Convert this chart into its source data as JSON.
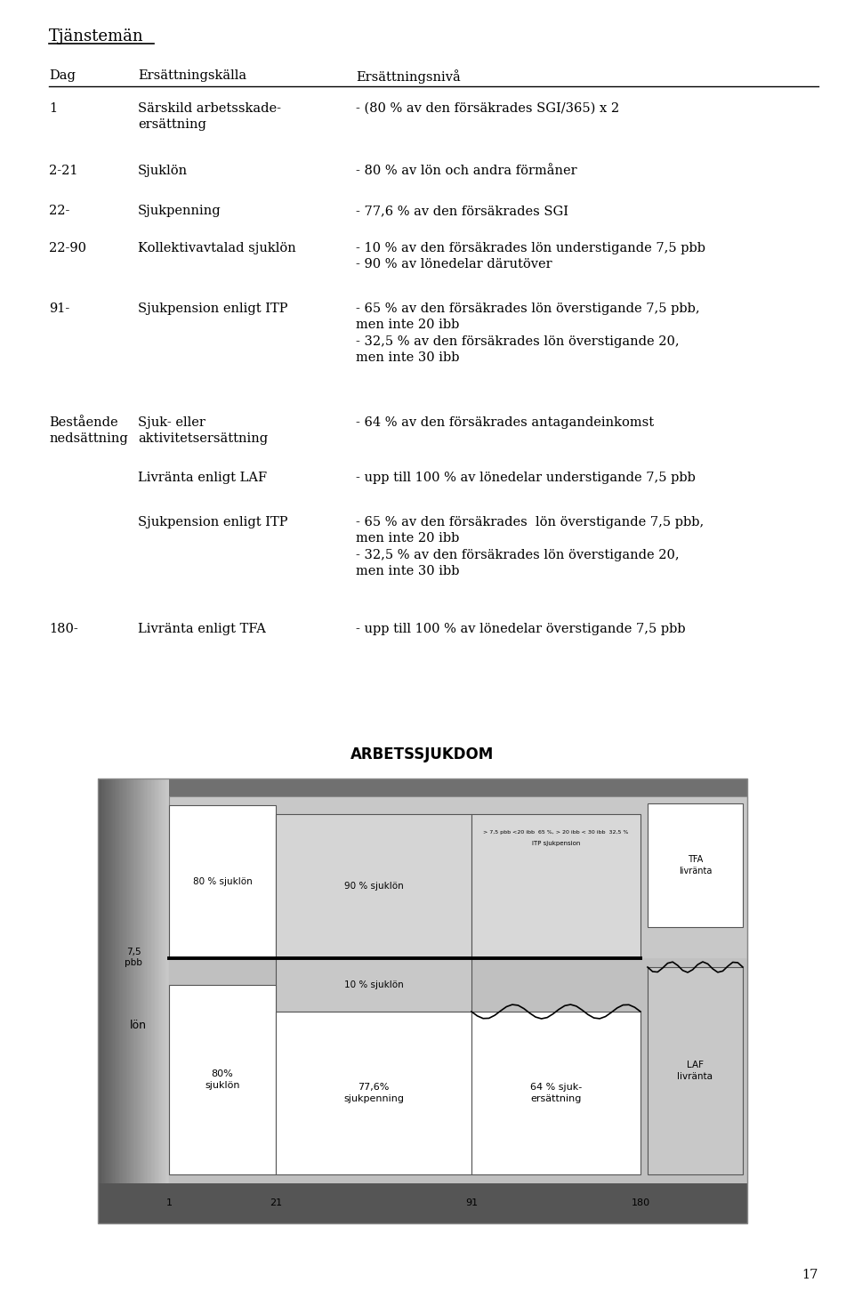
{
  "title": "Tjänstemän",
  "header_dag": "Dag",
  "header_kalla": "Ersättningskälla",
  "header_niva": "Ersättningsnivå",
  "rows": [
    {
      "dag": "1",
      "kalla": "Särskild arbetsskade-\nersättning",
      "niva": "- (80 % av den försäkrades SGI/365) x 2"
    },
    {
      "dag": "2-21",
      "kalla": "Sjuklön",
      "niva": "- 80 % av lön och andra förmåner"
    },
    {
      "dag": "22-",
      "kalla": "Sjukpenning",
      "niva": "- 77,6 % av den försäkrades SGI"
    },
    {
      "dag": "22-90",
      "kalla": "Kollektivavtalad sjuklön",
      "niva": "- 10 % av den försäkrades lön understigande 7,5 pbb\n- 90 % av lönedelar därutöver"
    },
    {
      "dag": "91-",
      "kalla": "Sjukpension enligt ITP",
      "niva": "- 65 % av den försäkrades lön överstigande 7,5 pbb,\nmen inte 20 ibb\n- 32,5 % av den försäkrades lön överstigande 20,\nmen inte 30 ibb"
    },
    {
      "dag": "Bestående\nnedsättning",
      "kalla": "Sjuk- eller\naktivitetsersättning",
      "niva": "- 64 % av den försäkrades antagandeinkomst"
    },
    {
      "dag": "",
      "kalla": "Livränta enligt LAF",
      "niva": "- upp till 100 % av lönedelar understigande 7,5 pbb"
    },
    {
      "dag": "",
      "kalla": "Sjukpension enligt ITP",
      "niva": "- 65 % av den försäkrades  lön överstigande 7,5 pbb,\nmen inte 20 ibb\n- 32,5 % av den försäkrades lön överstigande 20,\nmen inte 30 ibb"
    },
    {
      "dag": "180-",
      "kalla": "Livränta enligt TFA",
      "niva": "- upp till 100 % av lönedelar överstigande 7,5 pbb"
    }
  ],
  "diagram_title": "ARBETSSJUKDOM",
  "page_number": "17",
  "bg_color": "#ffffff",
  "text_color": "#000000"
}
